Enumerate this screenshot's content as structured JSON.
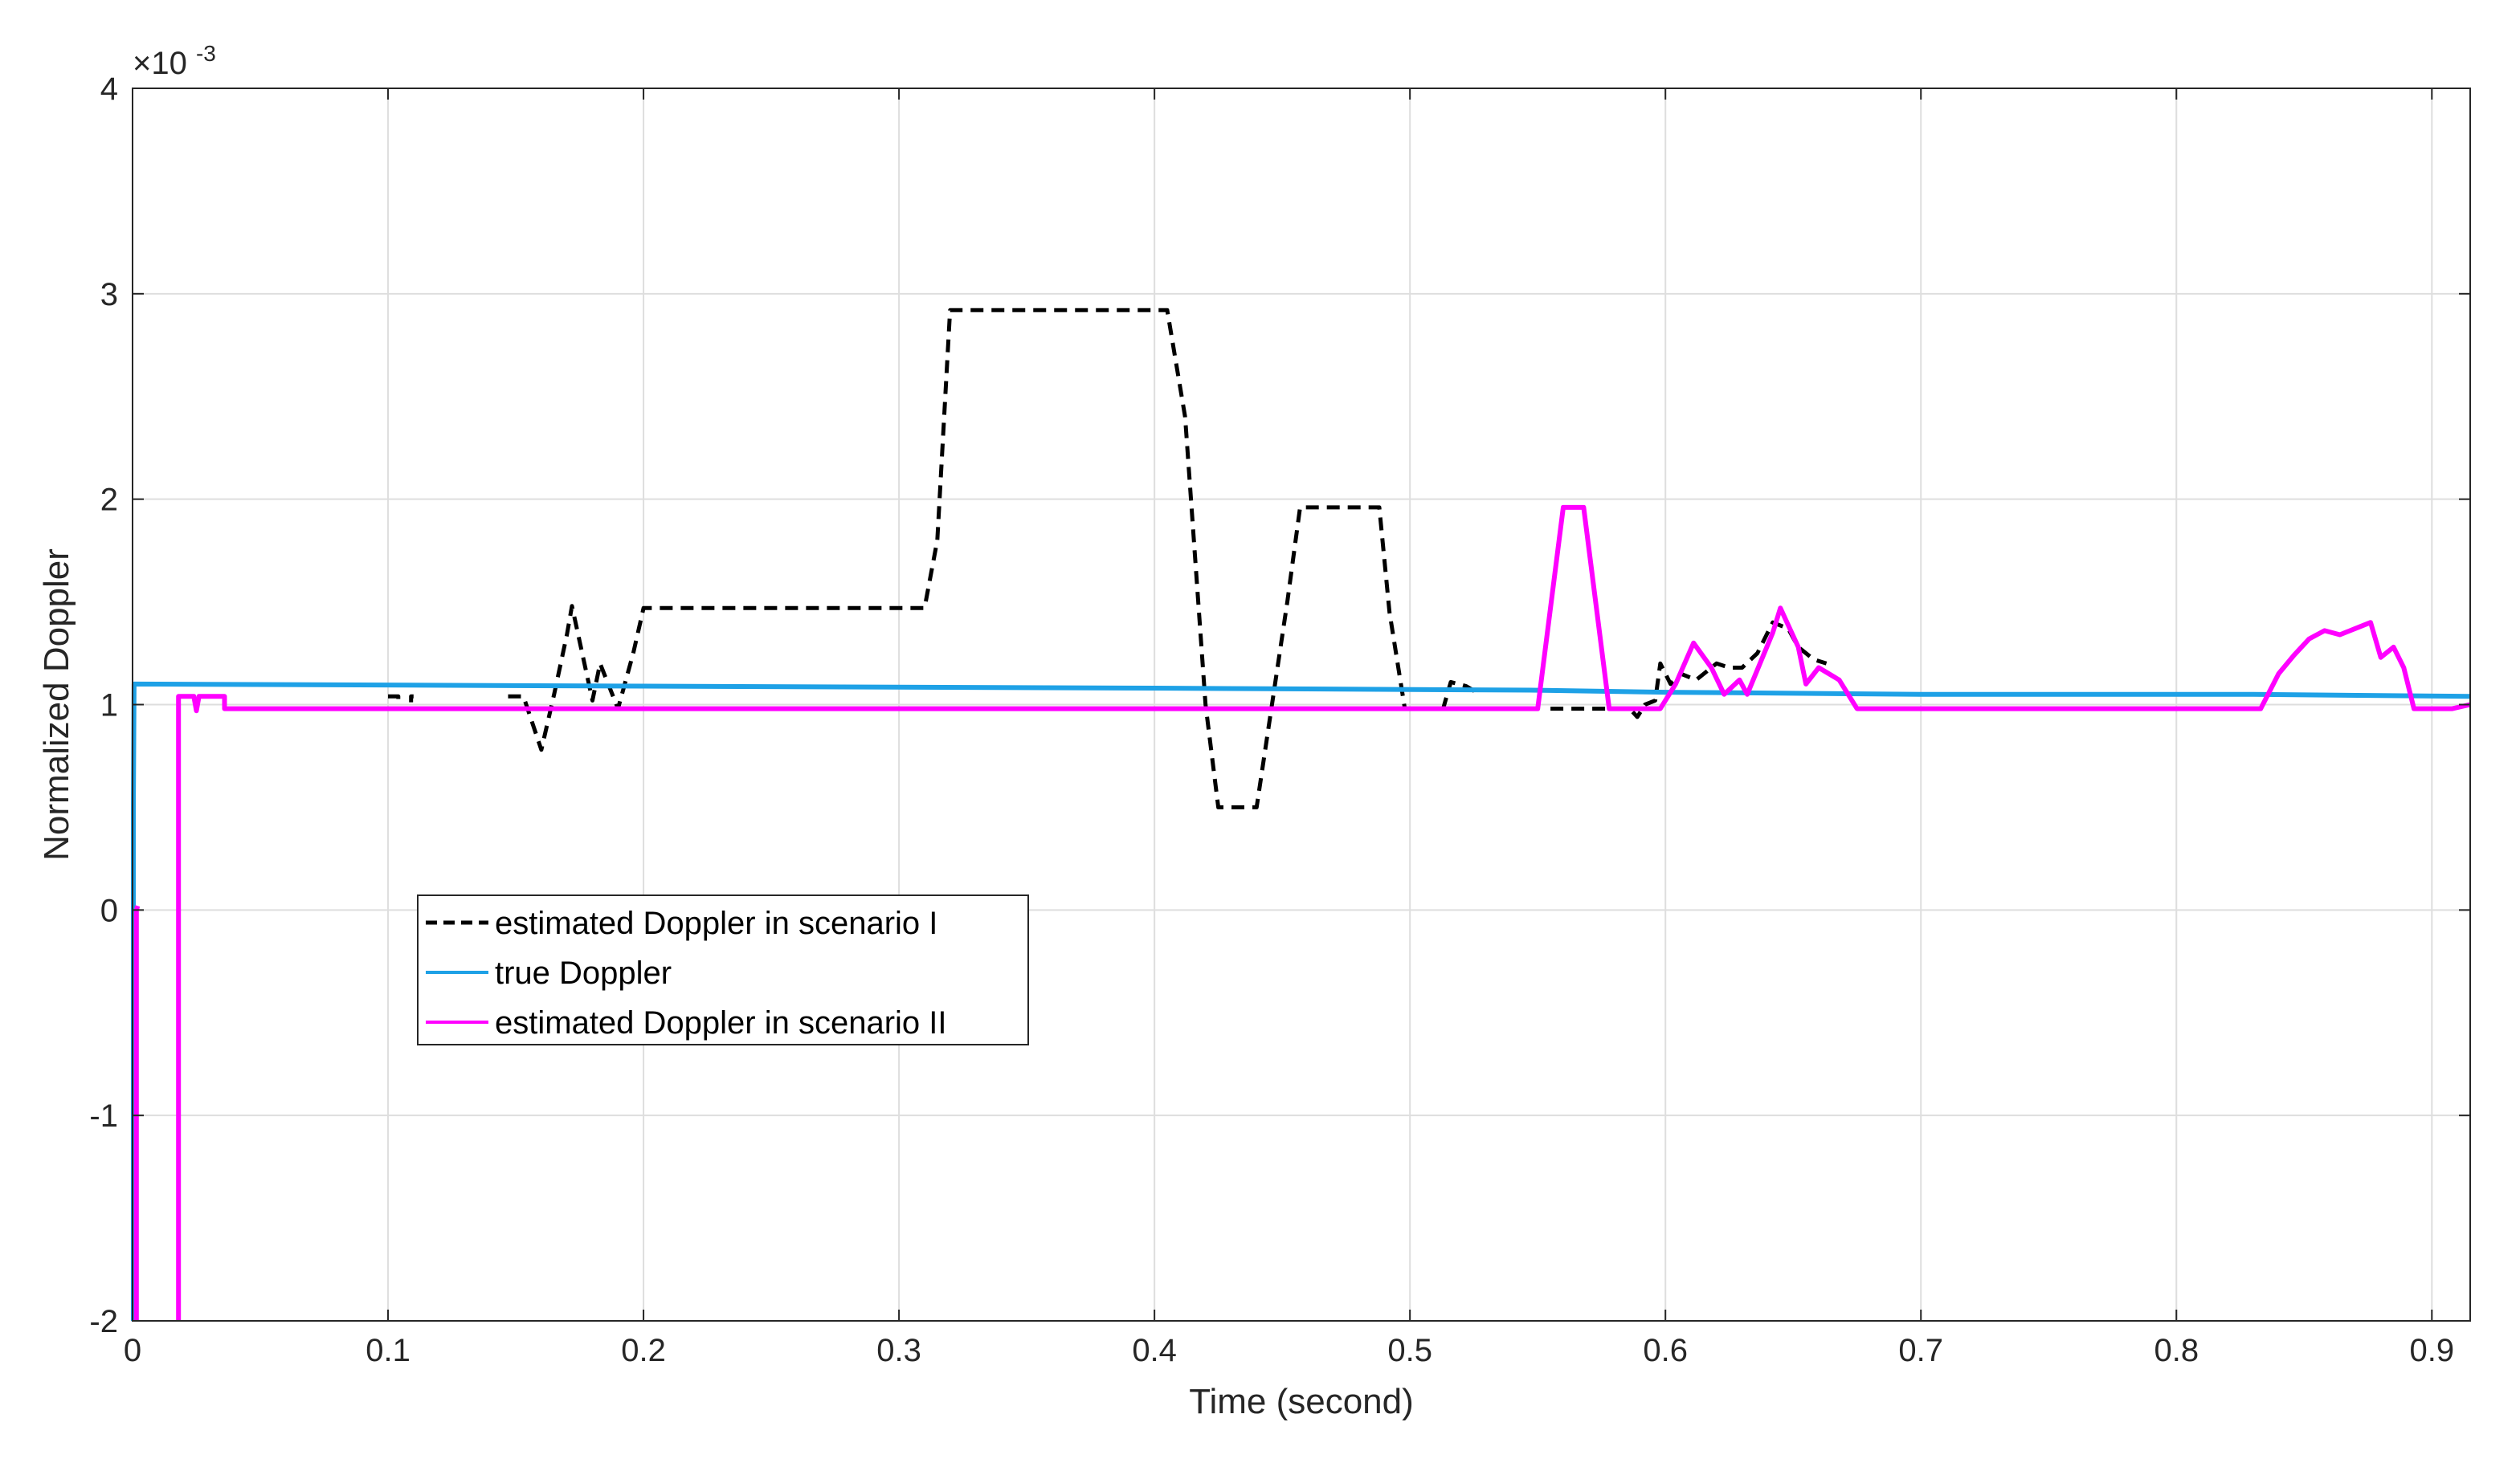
{
  "chart_data": {
    "type": "line",
    "xlabel": "Time (second)",
    "ylabel": "Normalized Doppler",
    "xlim": [
      0,
      0.915
    ],
    "ylim": [
      -2,
      4
    ],
    "y_exponent_base": "×10",
    "y_exponent_power": "-3",
    "xticks": [
      0,
      0.1,
      0.2,
      0.3,
      0.4,
      0.5,
      0.6,
      0.7,
      0.8,
      0.9
    ],
    "xtick_labels": [
      "0",
      "0.1",
      "0.2",
      "0.3",
      "0.4",
      "0.5",
      "0.6",
      "0.7",
      "0.8",
      "0.9"
    ],
    "yticks": [
      -2,
      -1,
      0,
      1,
      2,
      3,
      4
    ],
    "ytick_labels": [
      "-2",
      "-1",
      "0",
      "1",
      "2",
      "3",
      "4"
    ],
    "grid": true,
    "legend_position": "lower-left",
    "series": [
      {
        "name": "estimated Doppler in scenario I",
        "color": "#000000",
        "style": "dashed",
        "segments": [
          [
            [
              0.1,
              1.04
            ],
            [
              0.104,
              1.04
            ],
            [
              0.104,
              0.98
            ],
            [
              0.109,
              0.98
            ],
            [
              0.109,
              1.04
            ],
            [
              0.11,
              1.04
            ]
          ],
          [
            [
              0.147,
              1.04
            ],
            [
              0.153,
              1.04
            ],
            [
              0.16,
              0.78
            ],
            [
              0.165,
              1.05
            ],
            [
              0.17,
              1.34
            ],
            [
              0.172,
              1.48
            ],
            [
              0.18,
              1.02
            ],
            [
              0.183,
              1.2
            ],
            [
              0.19,
              0.98
            ],
            [
              0.196,
              1.25
            ],
            [
              0.2,
              1.47
            ],
            [
              0.31,
              1.47
            ],
            [
              0.315,
              1.8
            ],
            [
              0.32,
              2.92
            ],
            [
              0.405,
              2.92
            ],
            [
              0.412,
              2.4
            ],
            [
              0.42,
              1.0
            ],
            [
              0.425,
              0.5
            ],
            [
              0.44,
              0.5
            ],
            [
              0.452,
              1.5
            ],
            [
              0.457,
              1.96
            ],
            [
              0.488,
              1.96
            ],
            [
              0.492,
              1.45
            ],
            [
              0.498,
              0.98
            ],
            [
              0.513,
              0.98
            ],
            [
              0.516,
              1.11
            ],
            [
              0.522,
              1.09
            ],
            [
              0.526,
              1.06
            ]
          ],
          [
            [
              0.555,
              0.98
            ],
            [
              0.58,
              0.98
            ],
            [
              0.586,
              0.98
            ],
            [
              0.589,
              0.94
            ],
            [
              0.592,
              1.0
            ],
            [
              0.596,
              1.02
            ],
            [
              0.598,
              1.2
            ],
            [
              0.602,
              1.1
            ],
            [
              0.606,
              1.15
            ],
            [
              0.612,
              1.12
            ],
            [
              0.62,
              1.2
            ],
            [
              0.625,
              1.18
            ],
            [
              0.63,
              1.18
            ],
            [
              0.636,
              1.25
            ],
            [
              0.642,
              1.4
            ],
            [
              0.648,
              1.37
            ],
            [
              0.652,
              1.28
            ],
            [
              0.658,
              1.22
            ],
            [
              0.663,
              1.2
            ]
          ]
        ]
      },
      {
        "name": "true Doppler",
        "color": "#1ea1e6",
        "style": "solid",
        "segments": [
          [
            [
              0.0003,
              -2.0
            ],
            [
              0.0003,
              0.5
            ],
            [
              0.0006,
              1.1
            ],
            [
              0.2,
              1.09
            ],
            [
              0.4,
              1.08
            ],
            [
              0.55,
              1.07
            ],
            [
              0.6,
              1.06
            ],
            [
              0.7,
              1.05
            ],
            [
              0.83,
              1.05
            ],
            [
              0.915,
              1.04
            ]
          ]
        ]
      },
      {
        "name": "estimated Doppler in scenario II",
        "color": "#ff00ff",
        "style": "solid",
        "segments": [
          [
            [
              0.0015,
              -2.0
            ],
            [
              0.0015,
              0.0
            ],
            [
              0.002,
              0.02
            ]
          ],
          [
            [
              0.018,
              -2.0
            ],
            [
              0.018,
              1.04
            ],
            [
              0.024,
              1.04
            ],
            [
              0.025,
              0.97
            ],
            [
              0.026,
              1.04
            ],
            [
              0.036,
              1.04
            ],
            [
              0.036,
              0.98
            ],
            [
              0.55,
              0.98
            ],
            [
              0.56,
              1.96
            ],
            [
              0.568,
              1.96
            ],
            [
              0.578,
              0.98
            ],
            [
              0.598,
              0.98
            ],
            [
              0.604,
              1.1
            ],
            [
              0.611,
              1.3
            ],
            [
              0.618,
              1.18
            ],
            [
              0.623,
              1.05
            ],
            [
              0.629,
              1.12
            ],
            [
              0.632,
              1.05
            ],
            [
              0.637,
              1.2
            ],
            [
              0.642,
              1.35
            ],
            [
              0.645,
              1.47
            ],
            [
              0.652,
              1.28
            ],
            [
              0.655,
              1.1
            ],
            [
              0.66,
              1.18
            ],
            [
              0.668,
              1.12
            ],
            [
              0.675,
              0.98
            ],
            [
              0.833,
              0.98
            ],
            [
              0.84,
              1.15
            ],
            [
              0.846,
              1.24
            ],
            [
              0.852,
              1.32
            ],
            [
              0.858,
              1.36
            ],
            [
              0.864,
              1.34
            ],
            [
              0.87,
              1.37
            ],
            [
              0.876,
              1.4
            ],
            [
              0.88,
              1.23
            ],
            [
              0.885,
              1.28
            ],
            [
              0.889,
              1.18
            ],
            [
              0.893,
              0.98
            ],
            [
              0.908,
              0.98
            ],
            [
              0.915,
              1.0
            ]
          ]
        ]
      }
    ]
  }
}
